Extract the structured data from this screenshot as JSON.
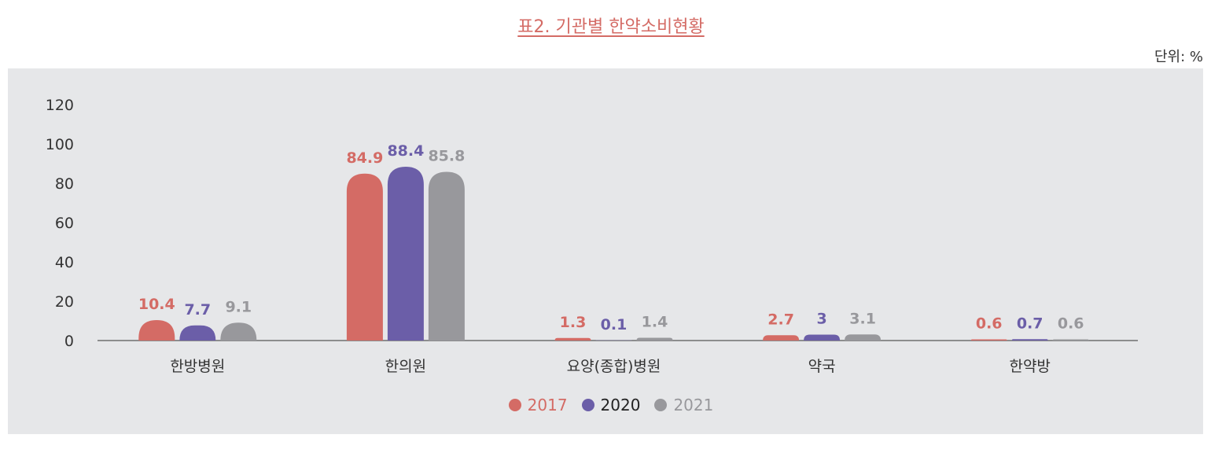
{
  "chart_data": {
    "type": "bar",
    "title": "표2. 기관별 한약소비현황",
    "unit_label": "단위: %",
    "categories": [
      "한방병원",
      "한의원",
      "요양(종합)병원",
      "약국",
      "한약방"
    ],
    "series": [
      {
        "name": "2017",
        "color": "#d46b65",
        "values": [
          10.4,
          84.9,
          1.3,
          2.7,
          0.6
        ],
        "labels": [
          "10.4",
          "84.9",
          "1.3",
          "2.7",
          "0.6"
        ]
      },
      {
        "name": "2020",
        "color": "#6b5ea8",
        "values": [
          7.7,
          88.4,
          0.1,
          3,
          0.7
        ],
        "labels": [
          "7.7",
          "88.4",
          "0.1",
          "3",
          "0.7"
        ]
      },
      {
        "name": "2021",
        "color": "#98989c",
        "values": [
          9.1,
          85.8,
          1.4,
          3.1,
          0.6
        ],
        "labels": [
          "9.1",
          "85.8",
          "1.4",
          "3.1",
          "0.6"
        ]
      }
    ],
    "yticks": [
      "0",
      "20",
      "40",
      "60",
      "80",
      "100",
      "120"
    ],
    "ylim": [
      0,
      120
    ],
    "legend_position": "bottom",
    "legend_text_colors": [
      "#d46b65",
      "#222222",
      "#98989c"
    ]
  }
}
